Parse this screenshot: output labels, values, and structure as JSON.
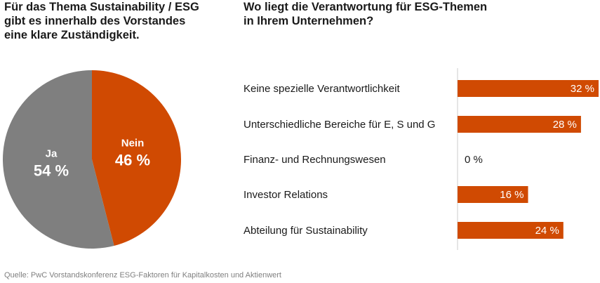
{
  "left_title": [
    "Für das Thema Sustainability / ESG",
    "gibt es innerhalb des Vorstandes",
    "eine klare Zuständigkeit."
  ],
  "right_title": [
    "Wo liegt die Verantwortung für ESG-Themen",
    "in Ihrem Unternehmen?"
  ],
  "source": "Quelle: PwC Vorstandskonferenz ESG-Faktoren für Kapitalkosten und Aktienwert",
  "colors": {
    "orange": "#d04a02",
    "grey": "#7f7f7f",
    "axis": "#cccccc",
    "text": "#1a1a1a"
  },
  "chart_data": [
    {
      "type": "pie",
      "slices": [
        {
          "label": "Nein",
          "value": 46,
          "value_label": "46 %",
          "color": "#d04a02"
        },
        {
          "label": "Ja",
          "value": 54,
          "value_label": "54 %",
          "color": "#7f7f7f"
        }
      ]
    },
    {
      "type": "bar",
      "orientation": "horizontal",
      "categories": [
        "Keine spezielle Verantwortlichkeit",
        "Unterschiedliche Bereiche für E, S und G",
        "Finanz- und Rechnungswesen",
        "Investor Relations",
        "Abteilung für Sustainability"
      ],
      "values": [
        32,
        28,
        0,
        16,
        24
      ],
      "value_labels": [
        "32 %",
        "28 %",
        "0 %",
        "16 %",
        "24 %"
      ],
      "color": "#d04a02",
      "xlim": [
        0,
        32
      ]
    }
  ]
}
